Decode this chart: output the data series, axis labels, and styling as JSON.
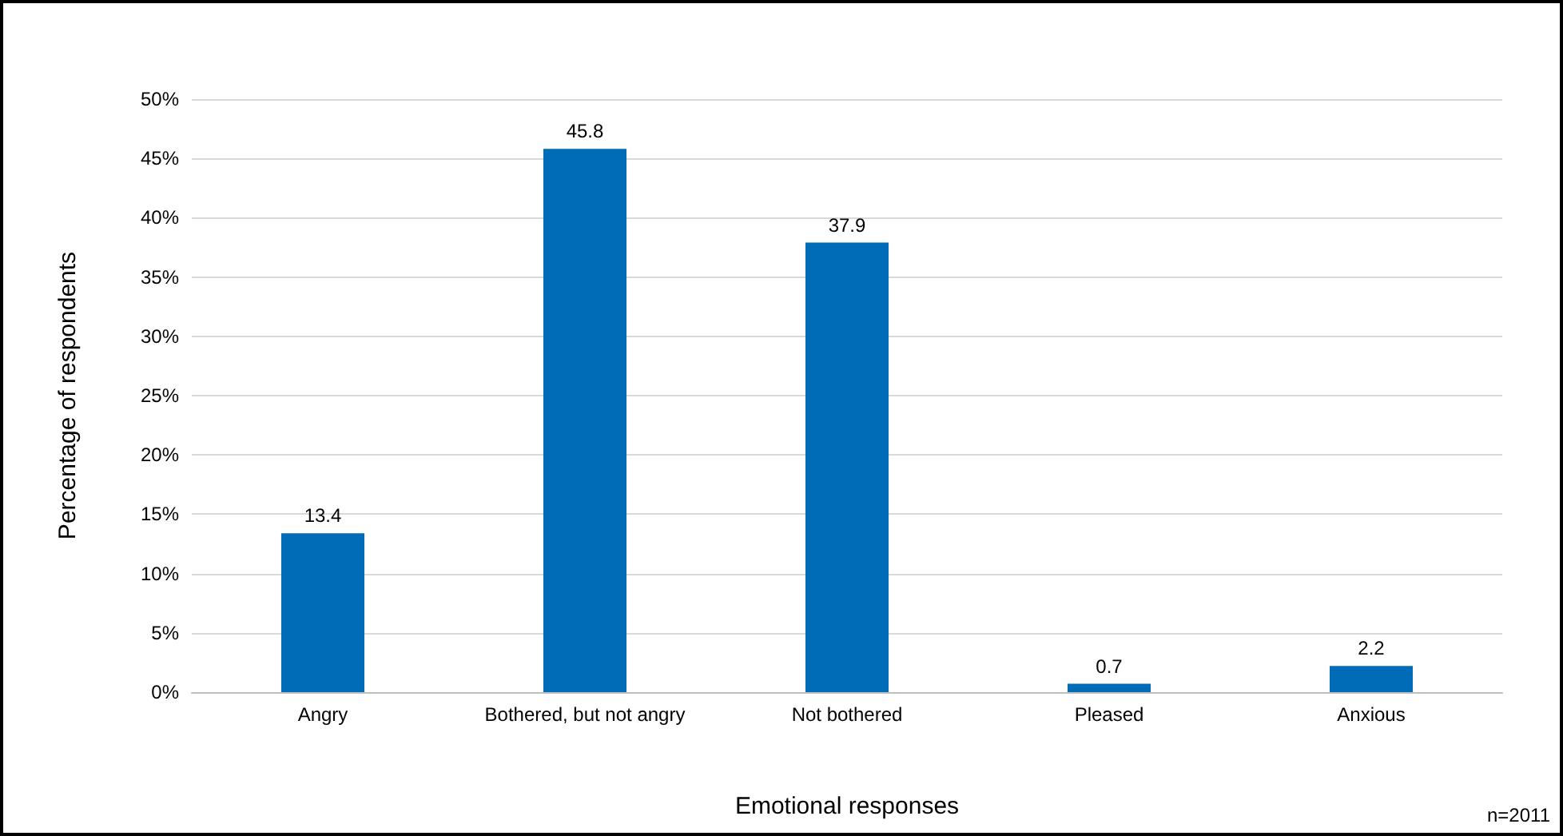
{
  "chart_data": {
    "type": "bar",
    "xlabel": "Emotional responses",
    "ylabel": "Percentage of respondents",
    "categories": [
      "Angry",
      "Bothered, but not angry",
      "Not bothered",
      "Pleased",
      "Anxious"
    ],
    "values": [
      13.4,
      45.8,
      37.9,
      0.7,
      2.2
    ],
    "color": "#006bb6",
    "ylim": [
      0,
      50
    ],
    "yticks": [
      {
        "value": 0,
        "label": "0%"
      },
      {
        "value": 5,
        "label": "5%"
      },
      {
        "value": 10,
        "label": "10%"
      },
      {
        "value": 15,
        "label": "15%"
      },
      {
        "value": 20,
        "label": "20%"
      },
      {
        "value": 25,
        "label": "25%"
      },
      {
        "value": 30,
        "label": "30%"
      },
      {
        "value": 35,
        "label": "35%"
      },
      {
        "value": 40,
        "label": "40%"
      },
      {
        "value": 45,
        "label": "45%"
      },
      {
        "value": 50,
        "label": "50%"
      }
    ],
    "grid": "y",
    "data_labels": true,
    "annotations": [
      "n=2011"
    ]
  }
}
